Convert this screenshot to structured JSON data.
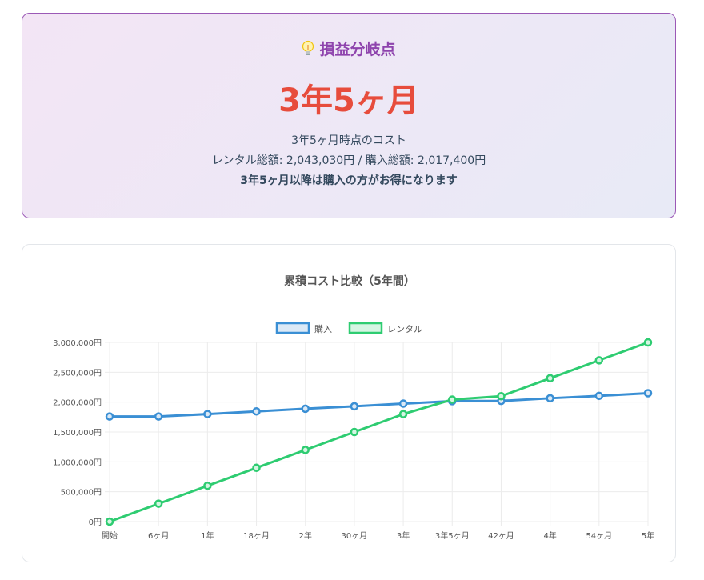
{
  "break_even": {
    "icon": "lightbulb-icon",
    "title": "損益分岐点",
    "value": "3年5ヶ月",
    "cost_at_label": "3年5ヶ月時点のコスト",
    "totals_text": "レンタル総額: 2,043,030円 / 購入総額: 2,017,400円",
    "conclusion": "3年5ヶ月以降は購入の方がお得になります"
  },
  "colors": {
    "purchase": "#3a8fd4",
    "rental": "#2ecc71",
    "title": "#8e44ad",
    "value": "#e74c3c"
  },
  "chart_data": {
    "type": "line",
    "title": "累積コスト比較（5年間）",
    "categories": [
      "開始",
      "6ヶ月",
      "1年",
      "18ヶ月",
      "2年",
      "30ヶ月",
      "3年",
      "3年5ヶ月",
      "42ヶ月",
      "4年",
      "54ヶ月",
      "5年"
    ],
    "series": [
      {
        "name": "購入",
        "values": [
          1760000,
          1760000,
          1800000,
          1845000,
          1890000,
          1930000,
          1975000,
          2017400,
          2020000,
          2065000,
          2105000,
          2150000
        ]
      },
      {
        "name": "レンタル",
        "values": [
          0,
          300000,
          600000,
          900000,
          1200000,
          1500000,
          1800000,
          2043030,
          2100000,
          2400000,
          2700000,
          3000000
        ]
      }
    ],
    "ylim": [
      0,
      3000000
    ],
    "yticks": [
      0,
      500000,
      1000000,
      1500000,
      2000000,
      2500000,
      3000000
    ],
    "ytick_labels": [
      "0円",
      "500,000円",
      "1,000,000円",
      "1,500,000円",
      "2,000,000円",
      "2,500,000円",
      "3,000,000円"
    ],
    "grid": true,
    "legend": "top-center"
  }
}
